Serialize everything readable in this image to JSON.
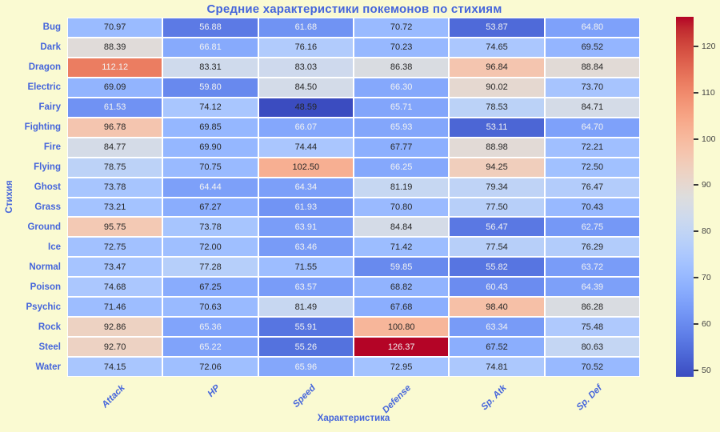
{
  "title": "Средние характеристики покемонов по стихиям",
  "chart_data": {
    "type": "heatmap",
    "title": "Средние характеристики покемонов по стихиям",
    "xlabel": "Характеристика",
    "ylabel": "Стихия",
    "columns": [
      "Attack",
      "HP",
      "Speed",
      "Defense",
      "Sp. Atk",
      "Sp. Def"
    ],
    "rows": [
      "Bug",
      "Dark",
      "Dragon",
      "Electric",
      "Fairy",
      "Fighting",
      "Fire",
      "Flying",
      "Ghost",
      "Grass",
      "Ground",
      "Ice",
      "Normal",
      "Poison",
      "Psychic",
      "Rock",
      "Steel",
      "Water"
    ],
    "values": [
      [
        70.97,
        56.88,
        61.68,
        70.72,
        53.87,
        64.8
      ],
      [
        88.39,
        66.81,
        76.16,
        70.23,
        74.65,
        69.52
      ],
      [
        112.12,
        83.31,
        83.03,
        86.38,
        96.84,
        88.84
      ],
      [
        69.09,
        59.8,
        84.5,
        66.3,
        90.02,
        73.7
      ],
      [
        61.53,
        74.12,
        48.59,
        65.71,
        78.53,
        84.71
      ],
      [
        96.78,
        69.85,
        66.07,
        65.93,
        53.11,
        64.7
      ],
      [
        84.77,
        69.9,
        74.44,
        67.77,
        88.98,
        72.21
      ],
      [
        78.75,
        70.75,
        102.5,
        66.25,
        94.25,
        72.5
      ],
      [
        73.78,
        64.44,
        64.34,
        81.19,
        79.34,
        76.47
      ],
      [
        73.21,
        67.27,
        61.93,
        70.8,
        77.5,
        70.43
      ],
      [
        95.75,
        73.78,
        63.91,
        84.84,
        56.47,
        62.75
      ],
      [
        72.75,
        72.0,
        63.46,
        71.42,
        77.54,
        76.29
      ],
      [
        73.47,
        77.28,
        71.55,
        59.85,
        55.82,
        63.72
      ],
      [
        74.68,
        67.25,
        63.57,
        68.82,
        60.43,
        64.39
      ],
      [
        71.46,
        70.63,
        81.49,
        67.68,
        98.4,
        86.28
      ],
      [
        92.86,
        65.36,
        55.91,
        100.8,
        63.34,
        75.48
      ],
      [
        92.7,
        65.22,
        55.26,
        126.37,
        67.52,
        80.63
      ],
      [
        74.15,
        72.06,
        65.96,
        72.95,
        74.81,
        70.52
      ]
    ],
    "value_format": "0.00",
    "vmin": 48.59,
    "vmax": 126.37,
    "colormap": "coolwarm",
    "grid": false,
    "legend_position": "right-colorbar",
    "colorbar_ticks": [
      120,
      110,
      100,
      90,
      80,
      70,
      60,
      50
    ]
  },
  "colors": {
    "background": "#FAFAD2",
    "label_blue": "#4565DB",
    "cell_border": "#FFFFFF",
    "annotation_dark": "#262626",
    "annotation_light": "#F2F2F2",
    "colorbar_min": "#3B4CC0",
    "colorbar_mid": "#DDDDDD",
    "colorbar_max": "#B40426",
    "cbar_tick": "#444444"
  }
}
